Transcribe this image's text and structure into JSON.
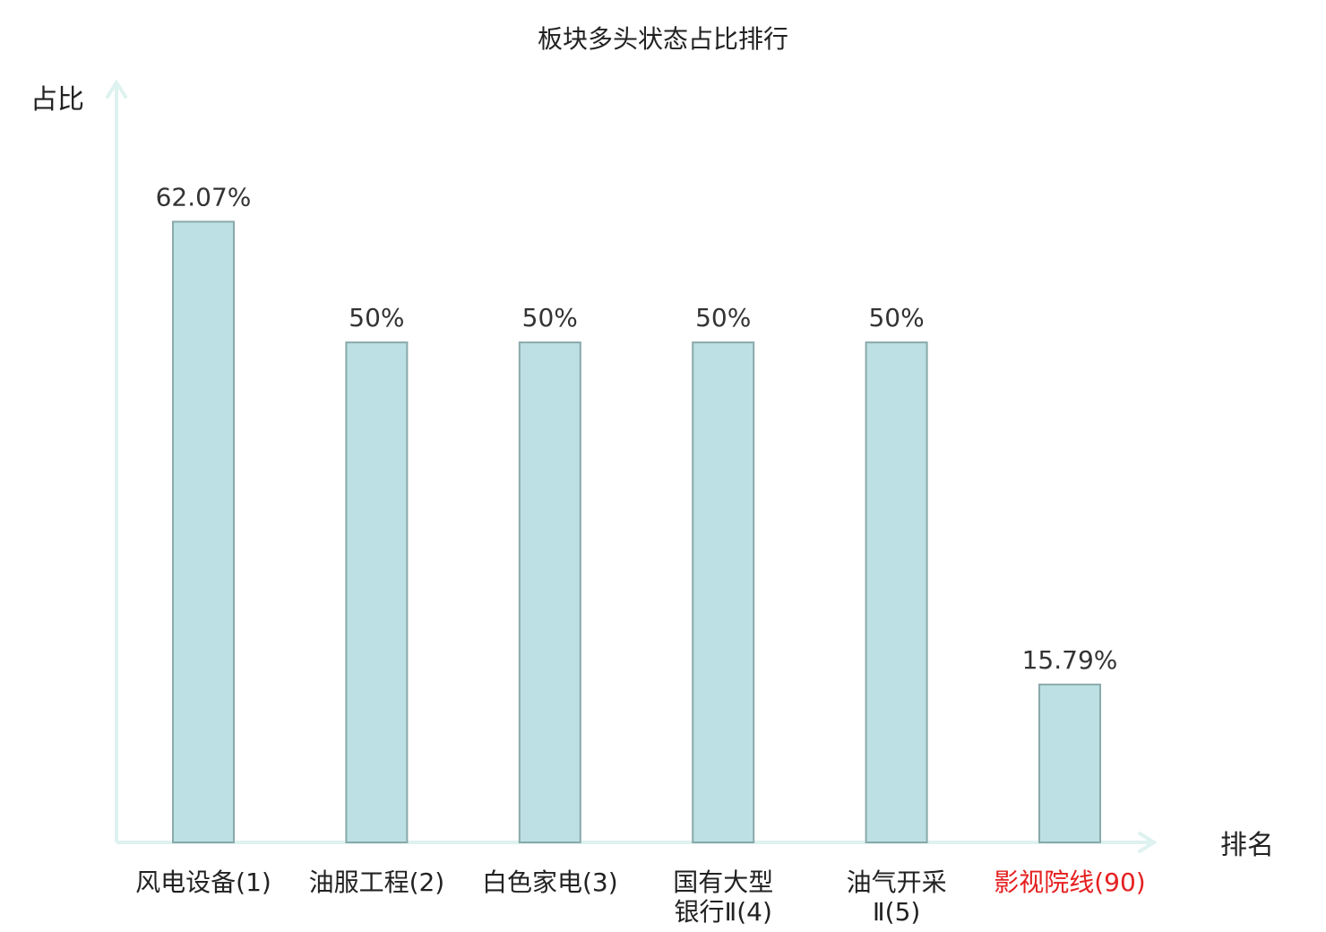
{
  "chart_data": {
    "type": "bar",
    "title": "板块多头状态占比排行",
    "ylabel": "占比",
    "xlabel": "排名",
    "ylim": [
      0,
      76
    ],
    "grid": false,
    "legend": "none",
    "categories": [
      {
        "lines": [
          "风电设备(1)"
        ],
        "highlight": false
      },
      {
        "lines": [
          "油服工程(2)"
        ],
        "highlight": false
      },
      {
        "lines": [
          "白色家电(3)"
        ],
        "highlight": false
      },
      {
        "lines": [
          "国有大型",
          "银行Ⅱ(4)"
        ],
        "highlight": false
      },
      {
        "lines": [
          "油气开采",
          "Ⅱ(5)"
        ],
        "highlight": false
      },
      {
        "lines": [
          "影视院线(90)"
        ],
        "highlight": true
      }
    ],
    "values": [
      62.07,
      50,
      50,
      50,
      50,
      15.79
    ],
    "value_labels": [
      "62.07%",
      "50%",
      "50%",
      "50%",
      "50%",
      "15.79%"
    ],
    "colors": {
      "bar_fill": "#bce0e3",
      "bar_stroke": "#8aa9ab",
      "axis": "#def2ef",
      "text": "#333333",
      "label_text": "#222222",
      "highlight_text": "#e52020"
    }
  }
}
